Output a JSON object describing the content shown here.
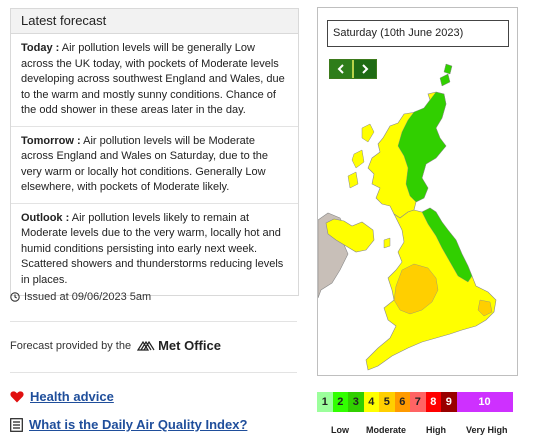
{
  "panel": {
    "title": "Latest forecast",
    "items": [
      {
        "label": "Today :",
        "text": " Air pollution levels will be generally Low across the UK today, with pockets of Moderate levels developing across southwest England and Wales, due to the warm and mostly sunny conditions. Chance of the odd shower in these areas later in the day."
      },
      {
        "label": "Tomorrow :",
        "text": " Air pollution levels will be Moderate across England and Wales on Saturday, due to the very warm or locally hot conditions. Generally Low elsewhere, with pockets of Moderate likely."
      },
      {
        "label": "Outlook :",
        "text": " Air pollution levels likely to remain at Moderate levels due to the very warm, locally hot and humid conditions persisting into early next week. Scattered showers and thunderstorms reducing levels in places."
      }
    ]
  },
  "issued": "Issued at 09/06/2023 5am",
  "provided_by": "Forecast provided by the",
  "met_office": "Met Office",
  "links": {
    "health": "Health advice",
    "daqi": "What is the Daily Air Quality Index?"
  },
  "map": {
    "date": "Saturday (10th June 2023)"
  },
  "scale": {
    "bands": [
      {
        "n": "1",
        "color": "#9cff9c"
      },
      {
        "n": "2",
        "color": "#31ff00"
      },
      {
        "n": "3",
        "color": "#31cf00"
      },
      {
        "n": "4",
        "color": "#ffff00"
      },
      {
        "n": "5",
        "color": "#ffcf00"
      },
      {
        "n": "6",
        "color": "#ff9a00"
      },
      {
        "n": "7",
        "color": "#ff6464"
      },
      {
        "n": "8",
        "color": "#ff0000"
      },
      {
        "n": "9",
        "color": "#990000"
      },
      {
        "n": "10",
        "color": "#ce30ff"
      }
    ],
    "labels": [
      "Low",
      "Moderate",
      "High",
      "Very High"
    ]
  },
  "colors": {
    "low_green": "#31cf00",
    "moderate_yellow": "#ffff00",
    "moderate_orange": "#ffcf00",
    "ireland_grey": "#c8bfb8"
  }
}
